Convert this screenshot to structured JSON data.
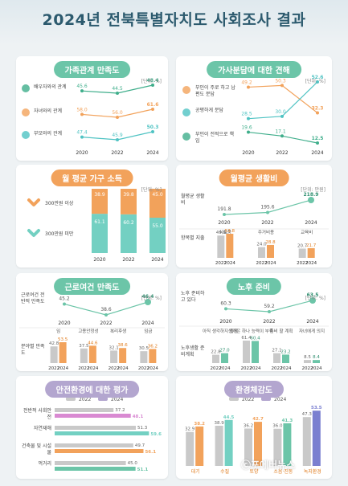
{
  "page": {
    "title": "2024년 전북특별자치도 사회조사 결과",
    "watermark": "ⓒ포에버뉴스"
  },
  "chart_data": [
    {
      "id": "family",
      "type": "line",
      "title": "가족관계 만족도",
      "unit": "[단위: %]",
      "x": [
        "2020",
        "2022",
        "2024"
      ],
      "series": [
        {
          "name": "배우자와의 관계",
          "values": [
            45.6,
            44.5,
            48.4
          ],
          "color": "#3fae8b"
        },
        {
          "name": "자녀와의 관계",
          "values": [
            58.0,
            56.0,
            61.6
          ],
          "color": "#f2a25b"
        },
        {
          "name": "부모와의 관계",
          "values": [
            47.4,
            45.9,
            50.3
          ],
          "color": "#4fc3c3"
        }
      ]
    },
    {
      "id": "housework",
      "type": "line",
      "title": "가사분담에 대한 견해",
      "unit": "[단위: %]",
      "x": [
        "2020",
        "2022",
        "2024"
      ],
      "series": [
        {
          "name": "부인이 주로 하고 남편도 분담",
          "values": [
            49.2,
            50.3,
            32.3
          ],
          "color": "#f2a25b"
        },
        {
          "name": "공평하게 분담",
          "values": [
            28.5,
            30.0,
            52.6
          ],
          "color": "#4fc3c3"
        },
        {
          "name": "부인이 전적으로 책임",
          "values": [
            19.6,
            17.1,
            12.5
          ],
          "color": "#3fae8b"
        }
      ]
    },
    {
      "id": "income",
      "type": "bar",
      "title": "월 평균 가구 소득",
      "unit": "[단위: %]",
      "categories": [
        "2020",
        "2022",
        "2024"
      ],
      "series": [
        {
          "name": "300만원 미만",
          "values": [
            61.1,
            60.2,
            55.0
          ],
          "color": "#73d0c2"
        },
        {
          "name": "300만원 이상",
          "values": [
            38.9,
            39.8,
            45.0
          ],
          "color": "#f2a25b"
        }
      ]
    },
    {
      "id": "living",
      "type": "line",
      "title": "월평균 생활비",
      "unit": "[단위: 만원]",
      "x": [
        "2020",
        "2022",
        "2024"
      ],
      "label": "월평균 생활비",
      "values": [
        191.8,
        195.6,
        218.9
      ],
      "color": "#6cc5a8",
      "sub_label": "항목별 지출",
      "sub_x": [
        "2022",
        "2024"
      ],
      "sub_series": [
        {
          "name": "식료품",
          "values": [
            49.8,
            53.8
          ]
        },
        {
          "name": "주거비용",
          "values": [
            24.0,
            28.8
          ]
        },
        {
          "name": "교육비",
          "values": [
            20.7,
            21.7
          ]
        }
      ]
    },
    {
      "id": "work",
      "type": "line",
      "title": "근로여건 만족도",
      "unit": "[단위: %]",
      "x": [
        "2020",
        "2022",
        "2024"
      ],
      "label": "근로여건 전반적 만족도",
      "values": [
        45.2,
        38.6,
        46.4
      ],
      "color": "#6cc5a8",
      "sub_label": "분야별 만족도",
      "sub_x": [
        "2022",
        "2024"
      ],
      "sub_series": [
        {
          "name": "임",
          "values": [
            42.8,
            53.5
          ]
        },
        {
          "name": "고용안정성",
          "values": [
            37.5,
            44.6
          ]
        },
        {
          "name": "복리후생",
          "values": [
            32.1,
            38.6
          ]
        },
        {
          "name": "임금",
          "values": [
            30.5,
            36.2
          ]
        }
      ]
    },
    {
      "id": "retire",
      "type": "line",
      "title": "노후 준비",
      "unit": "[단위: %]",
      "x": [
        "2020",
        "2022",
        "2024"
      ],
      "label": "노후 준비하고 있다",
      "values": [
        60.3,
        59.2,
        63.5
      ],
      "color": "#6cc5a8",
      "sub_label": "노후생활 준비계획",
      "sub_x": [
        "2022",
        "2024"
      ],
      "sub_series": [
        {
          "name": "아직 생각하지 않음",
          "values": [
            22.8,
            27.0
          ]
        },
        {
          "name": "생각은 하나 능력이 부족",
          "values": [
            61.4,
            60.4
          ]
        },
        {
          "name": "준비 할 계획",
          "values": [
            27.1,
            23.2
          ]
        },
        {
          "name": "자녀에게 의지",
          "values": [
            8.5,
            8.4
          ]
        }
      ]
    },
    {
      "id": "safety",
      "type": "bar",
      "title": "안전환경에 대한 평가",
      "legend": [
        "2022",
        "2024"
      ],
      "categories": [
        "전반적 사회안전",
        "자연재해",
        "건축물 및 시설물",
        "먹거리"
      ],
      "series": [
        {
          "name": "2022",
          "values": [
            37.2,
            51.3,
            49.7,
            45.0
          ],
          "color": "#c9c9c9"
        },
        {
          "name": "2024",
          "values": [
            48.1,
            59.6,
            56.1,
            51.1
          ],
          "color": null
        }
      ],
      "colors_2024": [
        "#d98ad2",
        "#73d0c2",
        "#f2a25b",
        "#6cc5a8"
      ]
    },
    {
      "id": "env",
      "type": "bar",
      "title": "환경체감도",
      "legend": [
        "2022",
        "2024"
      ],
      "categories": [
        "대기",
        "수질",
        "토양",
        "소음·진동",
        "녹지환경"
      ],
      "series": [
        {
          "name": "2022",
          "values": [
            32.9,
            38.9,
            36.2,
            36.0,
            47.3
          ],
          "color": "#c9c9c9"
        },
        {
          "name": "2024",
          "values": [
            38.2,
            44.5,
            42.7,
            41.3,
            53.5
          ],
          "color": null
        }
      ],
      "colors_2024": [
        "#f2a25b",
        "#73d0c2",
        "#f2a25b",
        "#6cc5a8",
        "#7a7fd0"
      ]
    }
  ]
}
